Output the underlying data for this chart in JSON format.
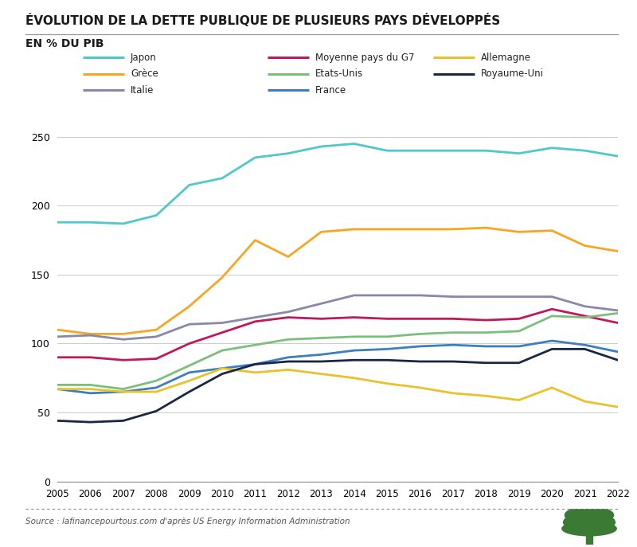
{
  "title1": "ÉVOLUTION DE LA DETTE PUBLIQUE DE PLUSIEURS PAYS DÉVELOPPÉS",
  "title2": "EN % DU PIB",
  "source": "Source : lafinancepourtous.com d'après US Energy Information Administration",
  "years": [
    2005,
    2006,
    2007,
    2008,
    2009,
    2010,
    2011,
    2012,
    2013,
    2014,
    2015,
    2016,
    2017,
    2018,
    2019,
    2020,
    2021,
    2022
  ],
  "series": {
    "Japon": {
      "color": "#4EC8C8",
      "values": [
        188,
        188,
        187,
        193,
        215,
        220,
        235,
        238,
        243,
        245,
        240,
        240,
        240,
        240,
        238,
        242,
        240,
        236
      ]
    },
    "Grèce": {
      "color": "#F5A623",
      "values": [
        110,
        107,
        107,
        110,
        127,
        148,
        175,
        163,
        181,
        183,
        183,
        183,
        183,
        184,
        181,
        182,
        171,
        167
      ]
    },
    "Italie": {
      "color": "#8888AA",
      "values": [
        105,
        106,
        103,
        105,
        114,
        115,
        119,
        123,
        129,
        135,
        135,
        135,
        134,
        134,
        134,
        134,
        127,
        124
      ]
    },
    "Moyenne pays du G7": {
      "color": "#C0175D",
      "values": [
        90,
        90,
        88,
        89,
        100,
        108,
        116,
        119,
        118,
        119,
        118,
        118,
        118,
        117,
        118,
        125,
        120,
        115
      ]
    },
    "Etats-Unis": {
      "color": "#7BBF7A",
      "values": [
        70,
        70,
        67,
        73,
        84,
        95,
        99,
        103,
        104,
        105,
        105,
        107,
        108,
        108,
        109,
        120,
        119,
        122
      ]
    },
    "France": {
      "color": "#3B7FBF",
      "values": [
        67,
        64,
        65,
        68,
        79,
        82,
        85,
        90,
        92,
        95,
        96,
        98,
        99,
        98,
        98,
        102,
        99,
        94
      ]
    },
    "Allemagne": {
      "color": "#E8C22A",
      "values": [
        67,
        67,
        65,
        65,
        73,
        82,
        79,
        81,
        78,
        75,
        71,
        68,
        64,
        62,
        59,
        68,
        58,
        54
      ]
    },
    "Royaume-Uni": {
      "color": "#1A2744",
      "values": [
        44,
        43,
        44,
        51,
        65,
        78,
        85,
        87,
        87,
        88,
        88,
        87,
        87,
        86,
        86,
        96,
        96,
        88
      ]
    }
  },
  "legend_layout": [
    [
      "Japon",
      "Moyenne pays du G7",
      "Allemagne"
    ],
    [
      "Grèce",
      "Etats-Unis",
      "Royaume-Uni"
    ],
    [
      "Italie",
      "France",
      null
    ]
  ],
  "ylim": [
    0,
    260
  ],
  "yticks": [
    0,
    50,
    100,
    150,
    200,
    250
  ],
  "background_color": "#FFFFFF",
  "plot_bg_color": "#FFFFFF"
}
